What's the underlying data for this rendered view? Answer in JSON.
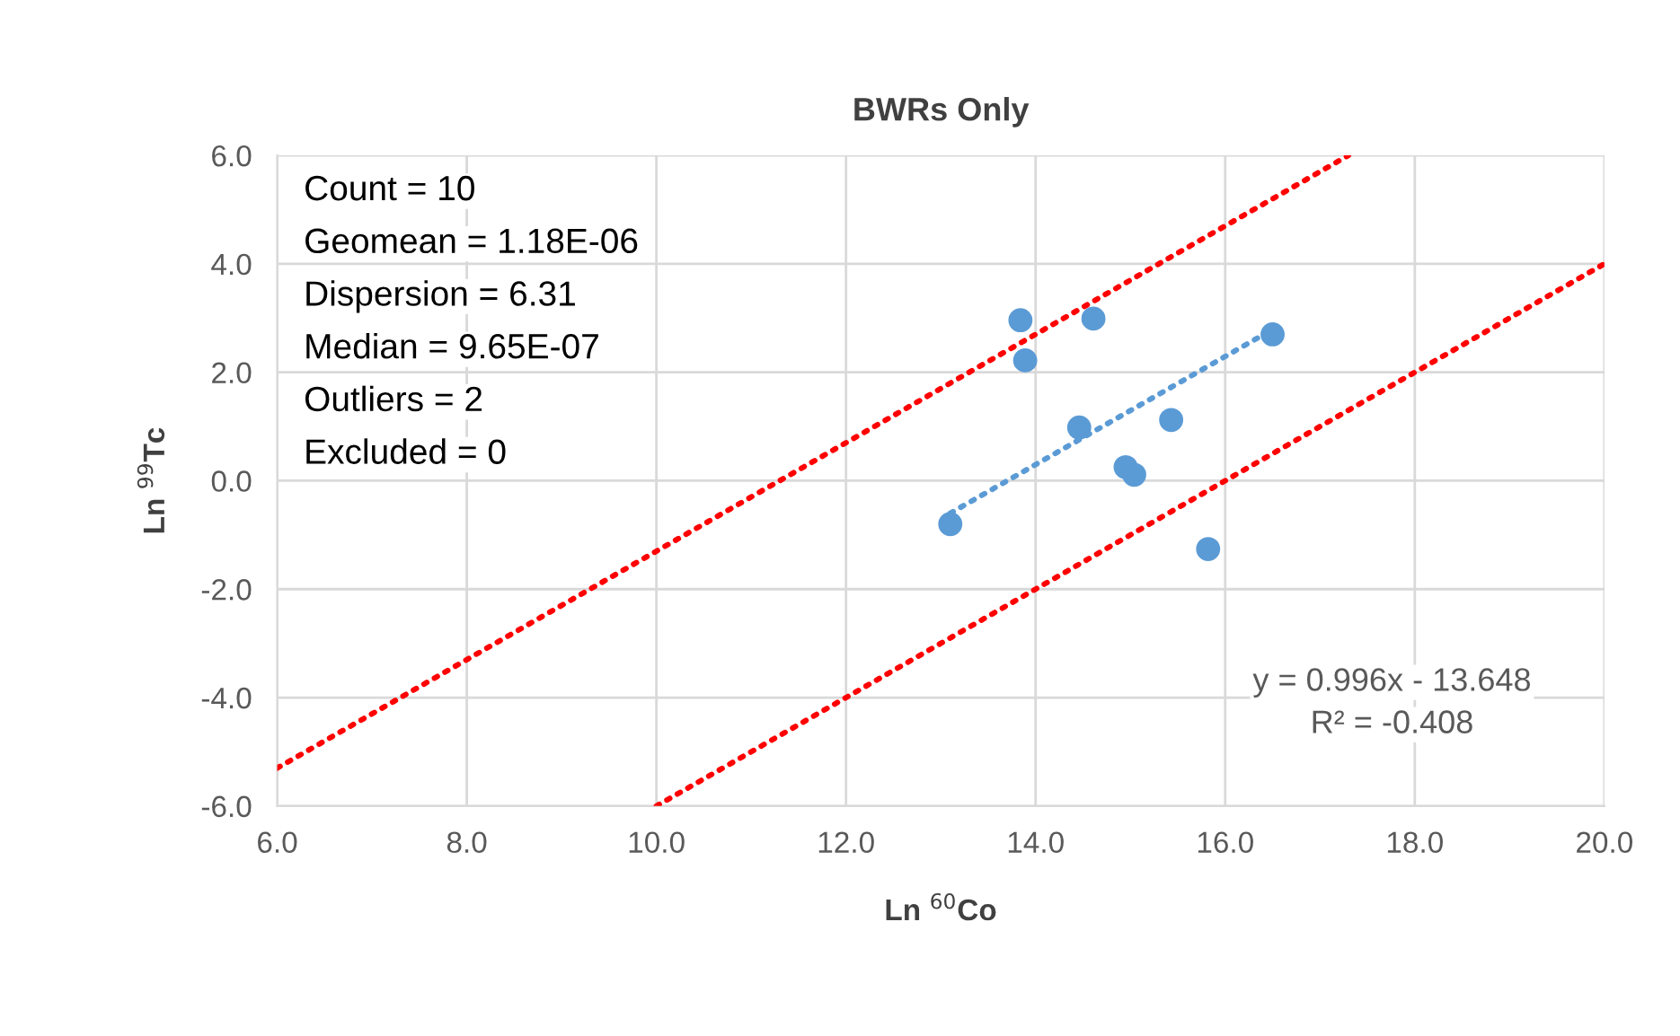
{
  "chart_data": {
    "type": "scatter",
    "title": "BWRs Only",
    "xlabel": "Ln $^{60}$Co",
    "ylabel": "Ln $^{99}$Tc",
    "series": [
      {
        "color": "#5b9bd5",
        "marker": "circle",
        "x": [
          13.84,
          14.61,
          13.89,
          16.5,
          14.46,
          15.43,
          14.95,
          15.04,
          13.1,
          15.82
        ],
        "values": [
          2.96,
          2.99,
          2.22,
          2.7,
          0.98,
          1.12,
          0.25,
          0.11,
          -0.8,
          -1.26
        ]
      },
      {
        "type": "line",
        "color": "#5b9bd5",
        "line_style": "dotted",
        "x": [
          13.1,
          16.5
        ],
        "values": [
          -0.6,
          2.79
        ]
      },
      {
        "type": "line",
        "color": "#ff0000",
        "line_style": "dotted",
        "x": [
          6.0,
          17.3
        ],
        "values": [
          -5.3,
          6.0
        ]
      },
      {
        "type": "line",
        "color": "#ff0000",
        "line_style": "dotted",
        "x": [
          10.0,
          20.0
        ],
        "values": [
          -6.0,
          4.0
        ]
      }
    ],
    "xlim": [
      6,
      20
    ],
    "ylim": [
      -6,
      6
    ],
    "xticks": [
      {
        "value": 6,
        "label": "6.0"
      },
      {
        "value": 8,
        "label": "8.0"
      },
      {
        "value": 10,
        "label": "10.0"
      },
      {
        "value": 12,
        "label": "12.0"
      },
      {
        "value": 14,
        "label": "14.0"
      },
      {
        "value": 16,
        "label": "16.0"
      },
      {
        "value": 18,
        "label": "18.0"
      },
      {
        "value": 20,
        "label": "20.0"
      }
    ],
    "yticks": [
      {
        "value": -6,
        "label": "-6.0"
      },
      {
        "value": -4,
        "label": "-4.0"
      },
      {
        "value": -2,
        "label": "-2.0"
      },
      {
        "value": 0,
        "label": "0.0"
      },
      {
        "value": 2,
        "label": "2.0"
      },
      {
        "value": 4,
        "label": "4.0"
      },
      {
        "value": 6,
        "label": "6.0"
      }
    ],
    "grid": true,
    "legend": false,
    "annotations": [
      "Count = 10",
      "Geomean = 1.18E-06",
      "Dispersion = 6.31",
      "Median = 9.65E-07",
      "Outliers = 2",
      "Excluded = 0",
      "y = 0.996x - 13.648",
      "R² = -0.408"
    ]
  }
}
